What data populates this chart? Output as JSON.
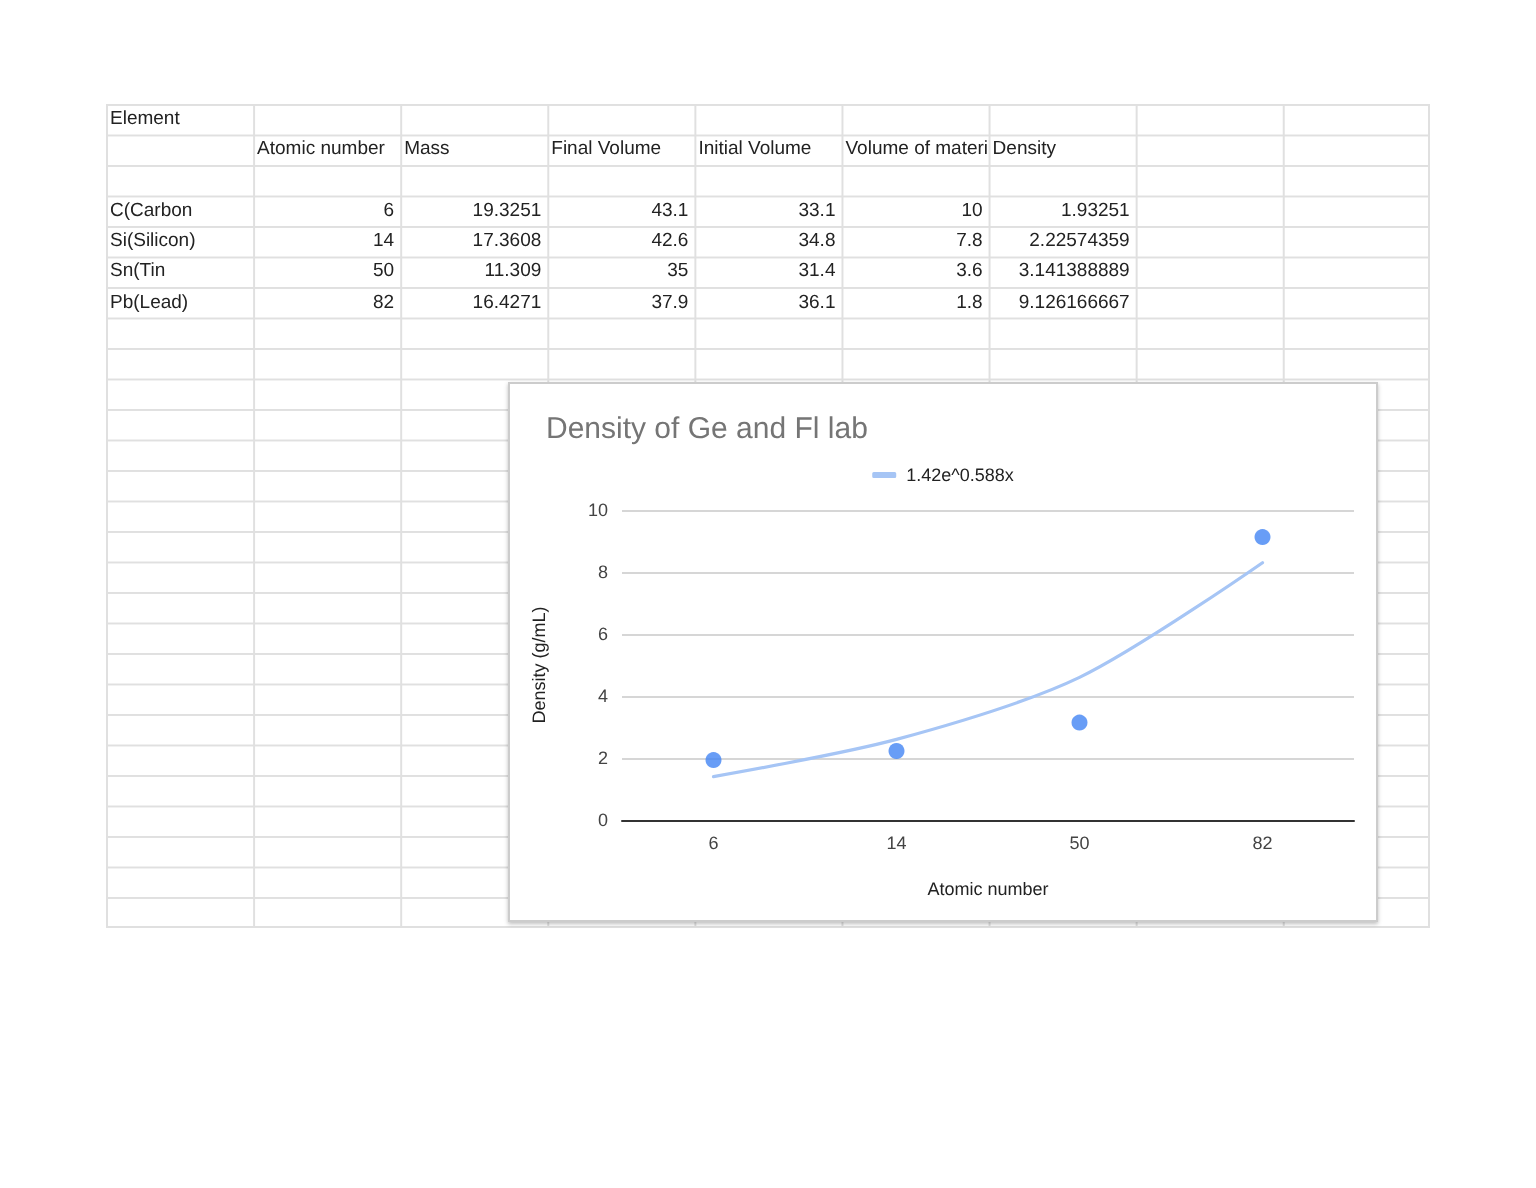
{
  "chart_data": [
    {
      "type": "other",
      "categories": [
        "Element",
        "Atomic number",
        "Mass",
        "Final Volume",
        "Initial Volume",
        "Volume of materi",
        "Density"
      ],
      "y_categories": [
        "C(Carbon",
        "Si(Silicon)",
        "Sn(Tin",
        "Pb(Lead)"
      ],
      "cell_labels": [
        [
          "6",
          "19.3251",
          "43.1",
          "33.1",
          "10",
          "1.93251"
        ],
        [
          "14",
          "17.3608",
          "42.6",
          "34.8",
          "7.8",
          "2.22574359"
        ],
        [
          "50",
          "11.309",
          "35",
          "31.4",
          "3.6",
          "3.141388889"
        ],
        [
          "82",
          "16.4271",
          "37.9",
          "36.1",
          "1.8",
          "9.126166667"
        ]
      ]
    },
    {
      "type": "scatter",
      "title": "Density of Ge and Fl lab",
      "xlabel": "Atomic number",
      "ylabel": "Density (g/mL)",
      "categories": [
        "6",
        "14",
        "50",
        "82"
      ],
      "series": [
        {
          "color": "#4285f4",
          "values": [
            1.93251,
            2.22574359,
            3.141388889,
            9.126166667
          ]
        },
        {
          "type": "line",
          "name": "1.42e^0.588x",
          "color": "#a6c5f5",
          "marker": "none",
          "values": [
            1.4,
            2.6,
            4.6,
            8.3
          ]
        }
      ],
      "ylim": [
        0,
        10
      ],
      "yticks": [
        0,
        2,
        4,
        6,
        8,
        10
      ],
      "grid": "y",
      "legend": "top",
      "marker": "circle"
    }
  ]
}
